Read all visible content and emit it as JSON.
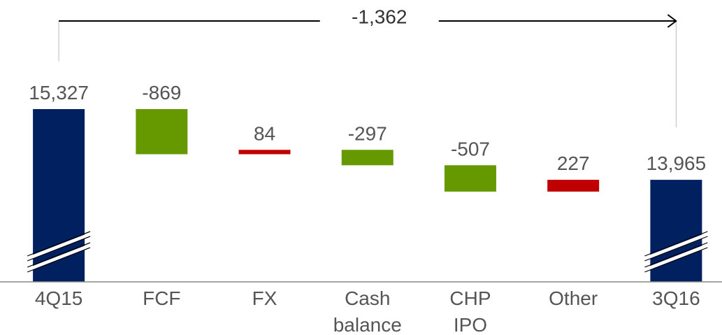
{
  "chart_data": {
    "type": "waterfall",
    "categories": [
      "4Q15",
      "FCF",
      "FX",
      "Cash balance",
      "CHP IPO",
      "Other",
      "3Q16"
    ],
    "values": [
      15327,
      -869,
      84,
      -297,
      -507,
      227,
      13965
    ],
    "value_labels": [
      "15,327",
      "-869",
      "84",
      "-297",
      "-507",
      "227",
      "13,965"
    ],
    "measure": [
      "absolute",
      "relative",
      "relative",
      "relative",
      "relative",
      "relative",
      "total"
    ],
    "colors": {
      "total": "#002060",
      "decrease": "#669900",
      "increase": "#c00000"
    },
    "ylim": [
      12000,
      16000
    ],
    "annotation": "-1,362"
  }
}
